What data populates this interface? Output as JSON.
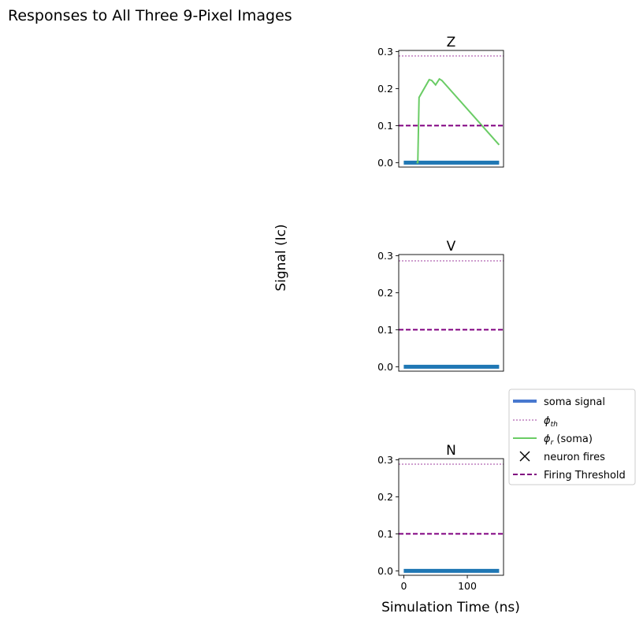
{
  "figure": {
    "title": "Responses to All Three 9-Pixel Images",
    "ylabel": "Signal (Ic)",
    "xlabel": "Simulation Time (ns)"
  },
  "legend": {
    "placement": "right",
    "entries": [
      {
        "label": "soma signal",
        "color": "#4878cf",
        "style": "thick-solid"
      },
      {
        "label": "ϕth",
        "color": "#800080",
        "style": "thin-dotted"
      },
      {
        "label": "ϕr (soma)",
        "color": "#6acc65",
        "style": "solid"
      },
      {
        "label": "neuron fires",
        "color": "#000000",
        "style": "x-marker"
      },
      {
        "label": "Firing Threshold",
        "color": "#800080",
        "style": "dashed"
      }
    ]
  },
  "chart_data": [
    {
      "type": "line",
      "title": "Z",
      "xlim": [
        -8,
        157
      ],
      "ylim": [
        -0.012,
        0.303
      ],
      "yticks": [
        0.0,
        0.1,
        0.2,
        0.3
      ],
      "xticks": [],
      "series": [
        {
          "name": "soma signal",
          "color": "#1f77b4",
          "x": [
            0,
            150
          ],
          "y": [
            0.0,
            0.0
          ]
        },
        {
          "name": "ϕth",
          "color": "#800080",
          "x": [
            -8,
            157
          ],
          "y": [
            0.288,
            0.288
          ]
        },
        {
          "name": "ϕr (soma)",
          "color": "#6acc65",
          "x": [
            20,
            22,
            24,
            40,
            44,
            50,
            56,
            60,
            150
          ],
          "y": [
            0.0,
            0.0,
            0.176,
            0.224,
            0.222,
            0.21,
            0.226,
            0.222,
            0.048
          ]
        },
        {
          "name": "Firing Threshold",
          "color": "#800080",
          "x": [
            -8,
            157
          ],
          "y": [
            0.1,
            0.1
          ]
        }
      ]
    },
    {
      "type": "line",
      "title": "V",
      "xlim": [
        -8,
        157
      ],
      "ylim": [
        -0.012,
        0.303
      ],
      "yticks": [
        0.0,
        0.1,
        0.2,
        0.3
      ],
      "xticks": [],
      "series": [
        {
          "name": "soma signal",
          "color": "#1f77b4",
          "x": [
            0,
            150
          ],
          "y": [
            0.0,
            0.0
          ]
        },
        {
          "name": "ϕth",
          "color": "#800080",
          "x": [
            -8,
            157
          ],
          "y": [
            0.286,
            0.286
          ]
        },
        {
          "name": "Firing Threshold",
          "color": "#800080",
          "x": [
            -8,
            157
          ],
          "y": [
            0.1,
            0.1
          ]
        }
      ]
    },
    {
      "type": "line",
      "title": "N",
      "xlim": [
        -8,
        157
      ],
      "ylim": [
        -0.012,
        0.303
      ],
      "yticks": [
        0.0,
        0.1,
        0.2,
        0.3
      ],
      "xticks": [
        0,
        100
      ],
      "series": [
        {
          "name": "soma signal",
          "color": "#1f77b4",
          "x": [
            0,
            150
          ],
          "y": [
            0.0,
            0.0
          ]
        },
        {
          "name": "ϕth",
          "color": "#800080",
          "x": [
            -8,
            157
          ],
          "y": [
            0.288,
            0.288
          ]
        },
        {
          "name": "Firing Threshold",
          "color": "#800080",
          "x": [
            -8,
            157
          ],
          "y": [
            0.1,
            0.1
          ]
        }
      ]
    }
  ]
}
